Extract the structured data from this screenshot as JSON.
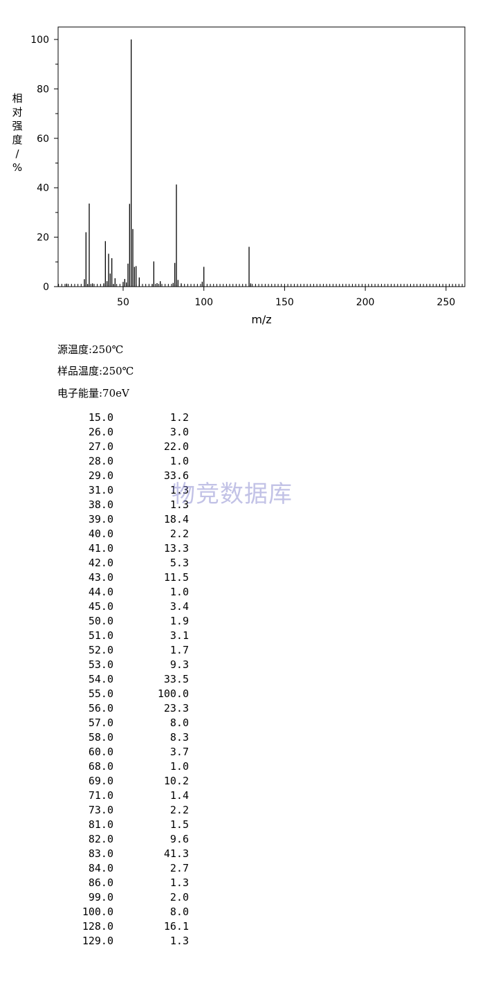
{
  "chart_data": {
    "type": "bar",
    "xlabel": "m/z",
    "ylabel": "相对强度/%",
    "xlim": [
      8,
      262
    ],
    "ylim": [
      0,
      105
    ],
    "xticks": [
      50,
      100,
      150,
      200,
      250
    ],
    "yticks": [
      0,
      20,
      40,
      60,
      80,
      100
    ],
    "grid": false,
    "peaks": [
      {
        "mz": "15.0",
        "intensity": "1.2"
      },
      {
        "mz": "26.0",
        "intensity": "3.0"
      },
      {
        "mz": "27.0",
        "intensity": "22.0"
      },
      {
        "mz": "28.0",
        "intensity": "1.0"
      },
      {
        "mz": "29.0",
        "intensity": "33.6"
      },
      {
        "mz": "31.0",
        "intensity": "1.3"
      },
      {
        "mz": "38.0",
        "intensity": "1.3"
      },
      {
        "mz": "39.0",
        "intensity": "18.4"
      },
      {
        "mz": "40.0",
        "intensity": "2.2"
      },
      {
        "mz": "41.0",
        "intensity": "13.3"
      },
      {
        "mz": "42.0",
        "intensity": "5.3"
      },
      {
        "mz": "43.0",
        "intensity": "11.5"
      },
      {
        "mz": "44.0",
        "intensity": "1.0"
      },
      {
        "mz": "45.0",
        "intensity": "3.4"
      },
      {
        "mz": "50.0",
        "intensity": "1.9"
      },
      {
        "mz": "51.0",
        "intensity": "3.1"
      },
      {
        "mz": "52.0",
        "intensity": "1.7"
      },
      {
        "mz": "53.0",
        "intensity": "9.3"
      },
      {
        "mz": "54.0",
        "intensity": "33.5"
      },
      {
        "mz": "55.0",
        "intensity": "100.0"
      },
      {
        "mz": "56.0",
        "intensity": "23.3"
      },
      {
        "mz": "57.0",
        "intensity": "8.0"
      },
      {
        "mz": "58.0",
        "intensity": "8.3"
      },
      {
        "mz": "60.0",
        "intensity": "3.7"
      },
      {
        "mz": "68.0",
        "intensity": "1.0"
      },
      {
        "mz": "69.0",
        "intensity": "10.2"
      },
      {
        "mz": "71.0",
        "intensity": "1.4"
      },
      {
        "mz": "73.0",
        "intensity": "2.2"
      },
      {
        "mz": "81.0",
        "intensity": "1.5"
      },
      {
        "mz": "82.0",
        "intensity": "9.6"
      },
      {
        "mz": "83.0",
        "intensity": "41.3"
      },
      {
        "mz": "84.0",
        "intensity": "2.7"
      },
      {
        "mz": "86.0",
        "intensity": "1.3"
      },
      {
        "mz": "99.0",
        "intensity": "2.0"
      },
      {
        "mz": "100.0",
        "intensity": "8.0"
      },
      {
        "mz": "128.0",
        "intensity": "16.1"
      },
      {
        "mz": "129.0",
        "intensity": "1.3"
      }
    ]
  },
  "conditions": {
    "source_temp": "源温度:250℃",
    "sample_temp": "样品温度:250℃",
    "electron_energy": "电子能量:70eV"
  },
  "watermark": "物竞数据库",
  "colors": {
    "axis": "#000000",
    "bar": "#000000",
    "watermark": "#7878c8"
  }
}
